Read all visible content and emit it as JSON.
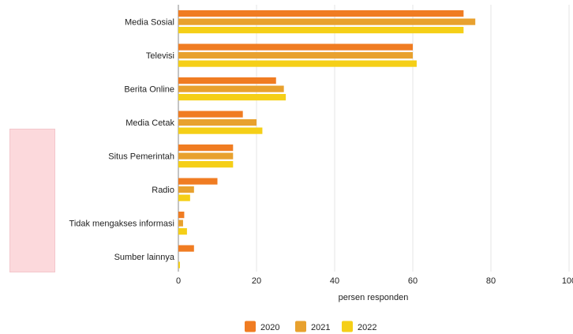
{
  "chart_data": {
    "type": "bar",
    "orientation": "horizontal",
    "categories": [
      "Media Sosial",
      "Televisi",
      "Berita Online",
      "Media Cetak",
      "Situs Pemerintah",
      "Radio",
      "Tidak mengakses informasi",
      "Sumber lainnya"
    ],
    "series": [
      {
        "name": "2020",
        "color": "#f07c22",
        "values": [
          73,
          60,
          25,
          16.5,
          14,
          10,
          1.5,
          4
        ]
      },
      {
        "name": "2021",
        "color": "#e8a12e",
        "values": [
          76,
          60,
          27,
          20,
          14,
          4,
          1.2,
          0
        ]
      },
      {
        "name": "2022",
        "color": "#f5cf17",
        "values": [
          73,
          61,
          27.5,
          21.5,
          14,
          3,
          2.2,
          0.4
        ]
      }
    ],
    "xlabel": "persen responden",
    "xlim": [
      0,
      100
    ],
    "xticks": [
      "0",
      "20",
      "40",
      "60",
      "80",
      "100"
    ],
    "grid": true,
    "legend_position": "bottom"
  }
}
